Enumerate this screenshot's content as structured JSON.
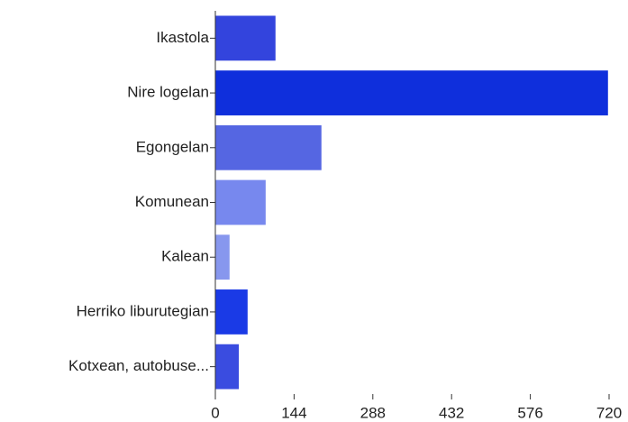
{
  "chart_data": {
    "type": "hbar",
    "categories": [
      "Ikastola",
      "Nire logelan",
      "Egongelan",
      "Komunean",
      "Kalean",
      "Herriko liburutegian",
      "Kotxean, autobuse..."
    ],
    "values": [
      110,
      718,
      194,
      92,
      26,
      59,
      43
    ],
    "colors": [
      "#3344dd",
      "#0f2fdc",
      "#5566e2",
      "#7788ee",
      "#8797ee",
      "#1a3ae6",
      "#3a4ce0"
    ],
    "xlim": [
      0,
      720
    ],
    "xticks": [
      0,
      144,
      288,
      432,
      576,
      720
    ]
  }
}
